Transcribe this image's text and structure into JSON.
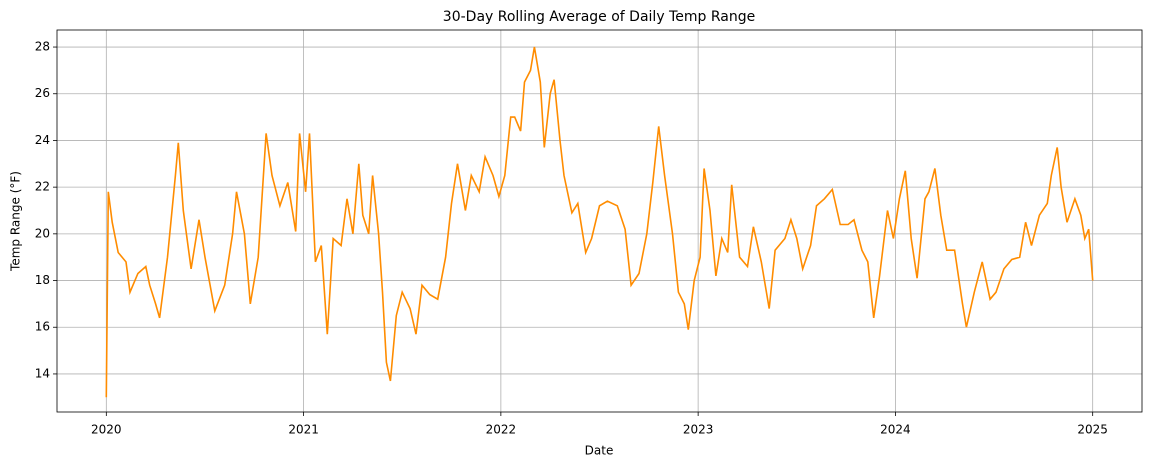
{
  "chart_data": {
    "type": "line",
    "title": "30-Day Rolling Average of Daily Temp Range",
    "x_label": "Date",
    "y_label": "Temp Range (°F)",
    "x": [
      2020.0,
      2020.01,
      2020.03,
      2020.06,
      2020.1,
      2020.12,
      2020.16,
      2020.2,
      2020.22,
      2020.25,
      2020.27,
      2020.31,
      2020.35,
      2020.365,
      2020.39,
      2020.43,
      2020.47,
      2020.5,
      2020.55,
      2020.6,
      2020.64,
      2020.66,
      2020.7,
      2020.73,
      2020.77,
      2020.81,
      2020.84,
      2020.88,
      2020.92,
      2020.96,
      2020.98,
      2021.01,
      2021.03,
      2021.06,
      2021.09,
      2021.12,
      2021.15,
      2021.19,
      2021.22,
      2021.25,
      2021.28,
      2021.3,
      2021.33,
      2021.35,
      2021.38,
      2021.4,
      2021.42,
      2021.44,
      2021.47,
      2021.5,
      2021.54,
      2021.57,
      2021.6,
      2021.64,
      2021.68,
      2021.72,
      2021.75,
      2021.78,
      2021.82,
      2021.85,
      2021.89,
      2021.92,
      2021.96,
      2021.99,
      2022.02,
      2022.05,
      2022.07,
      2022.1,
      2022.12,
      2022.15,
      2022.17,
      2022.2,
      2022.22,
      2022.25,
      2022.27,
      2022.3,
      2022.32,
      2022.36,
      2022.39,
      2022.43,
      2022.46,
      2022.5,
      2022.54,
      2022.59,
      2022.63,
      2022.66,
      2022.7,
      2022.74,
      2022.77,
      2022.8,
      2022.83,
      2022.87,
      2022.9,
      2022.93,
      2022.95,
      2022.98,
      2023.01,
      2023.03,
      2023.06,
      2023.09,
      2023.12,
      2023.15,
      2023.17,
      2023.21,
      2023.25,
      2023.28,
      2023.32,
      2023.36,
      2023.39,
      2023.44,
      2023.47,
      2023.5,
      2023.53,
      2023.57,
      2023.6,
      2023.64,
      2023.68,
      2023.72,
      2023.76,
      2023.79,
      2023.83,
      2023.86,
      2023.89,
      2023.92,
      2023.96,
      2023.99,
      2024.02,
      2024.05,
      2024.08,
      2024.11,
      2024.15,
      2024.17,
      2024.2,
      2024.23,
      2024.26,
      2024.3,
      2024.34,
      2024.36,
      2024.4,
      2024.44,
      2024.48,
      2024.51,
      2024.55,
      2024.59,
      2024.63,
      2024.66,
      2024.69,
      2024.73,
      2024.77,
      2024.79,
      2024.82,
      2024.84,
      2024.87,
      2024.91,
      2024.94,
      2024.96,
      2024.98,
      2025.0
    ],
    "series": [
      {
        "name": "30-Day Rolling Average",
        "color": "#ff8c00",
        "values": [
          13.0,
          21.8,
          20.5,
          19.2,
          18.8,
          17.5,
          18.3,
          18.6,
          17.8,
          17.0,
          16.4,
          19.0,
          22.5,
          23.9,
          21.0,
          18.5,
          20.6,
          19.0,
          16.7,
          17.8,
          20.0,
          21.8,
          20.0,
          17.0,
          19.0,
          24.3,
          22.5,
          21.2,
          22.2,
          20.1,
          24.3,
          21.8,
          24.3,
          18.8,
          19.5,
          15.7,
          19.8,
          19.5,
          21.5,
          20.0,
          23.0,
          20.8,
          20.0,
          22.5,
          20.0,
          17.5,
          14.5,
          13.7,
          16.5,
          17.5,
          16.8,
          15.7,
          17.8,
          17.4,
          17.2,
          19.0,
          21.3,
          23.0,
          21.0,
          22.5,
          21.8,
          23.3,
          22.5,
          21.6,
          22.5,
          25.0,
          25.0,
          24.4,
          26.5,
          27.0,
          28.0,
          26.5,
          23.7,
          26.0,
          26.6,
          24.0,
          22.5,
          20.9,
          21.3,
          19.2,
          19.8,
          21.2,
          21.4,
          21.2,
          20.2,
          17.8,
          18.3,
          20.0,
          22.2,
          24.6,
          22.5,
          20.0,
          17.5,
          17.0,
          15.9,
          18.0,
          19.0,
          22.8,
          21.0,
          18.2,
          19.8,
          19.2,
          22.1,
          19.0,
          18.6,
          20.3,
          18.8,
          16.8,
          19.3,
          19.8,
          20.6,
          19.8,
          18.5,
          19.5,
          21.2,
          21.5,
          21.9,
          20.4,
          20.4,
          20.6,
          19.3,
          18.8,
          16.4,
          18.2,
          21.0,
          19.8,
          21.5,
          22.7,
          19.8,
          18.1,
          21.5,
          21.8,
          22.8,
          20.8,
          19.3,
          19.3,
          17.0,
          16.0,
          17.5,
          18.8,
          17.2,
          17.5,
          18.5,
          18.9,
          19.0,
          20.5,
          19.5,
          20.8,
          21.3,
          22.5,
          23.7,
          22.0,
          20.5,
          21.5,
          20.8,
          19.8,
          20.2,
          18.0
        ]
      }
    ],
    "xlim": [
      2019.75,
      2025.25
    ],
    "xticks": [
      2020,
      2021,
      2022,
      2023,
      2024,
      2025
    ],
    "ylim": [
      12.37,
      28.73
    ],
    "yticks": [
      14,
      16,
      18,
      20,
      22,
      24,
      26,
      28
    ],
    "grid": true
  }
}
